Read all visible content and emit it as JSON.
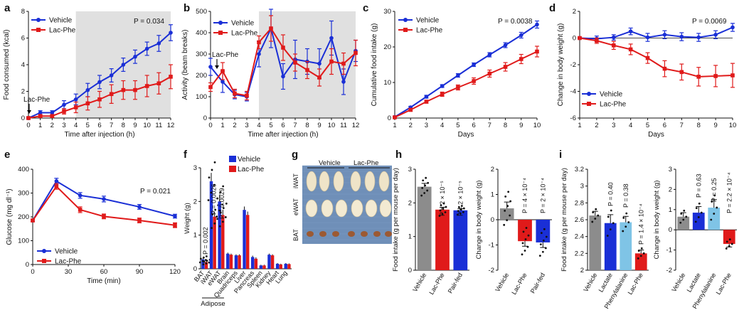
{
  "colors": {
    "vehicle": "#1a2fd6",
    "lacphe": "#e01a1a",
    "pairfed": "#1a2fd6",
    "lactate": "#1a2fd6",
    "phenylalanine": "#7fc4e6",
    "gray": "#8c8c8c",
    "shade": "#e0e0e0"
  },
  "panels": {
    "a": "a",
    "b": "b",
    "c": "c",
    "d": "d",
    "e": "e",
    "f": "f",
    "g": "g",
    "h": "h",
    "i": "i"
  },
  "chart_data": [
    {
      "id": "a",
      "type": "line",
      "xlabel": "Time after injection (h)",
      "ylabel": "Food consumed (kcal)",
      "x": [
        0,
        1,
        2,
        3,
        4,
        5,
        6,
        7,
        8,
        9,
        10,
        11,
        12
      ],
      "xticks": [
        0,
        1,
        2,
        3,
        4,
        5,
        6,
        7,
        8,
        9,
        10,
        11,
        12
      ],
      "ylim": [
        0,
        8
      ],
      "yticks": [
        0,
        2,
        4,
        6,
        8
      ],
      "shade": [
        4,
        12
      ],
      "pvalue": "P = 0.034",
      "annotation": "Lac-Phe",
      "legend": [
        "Vehicle",
        "Lac-Phe"
      ],
      "series": [
        {
          "name": "Vehicle",
          "values": [
            0,
            0.4,
            0.4,
            1.0,
            1.4,
            2.1,
            2.7,
            3.2,
            4.0,
            4.6,
            5.2,
            5.6,
            6.4
          ],
          "err": [
            0.1,
            0.15,
            0.15,
            0.3,
            0.4,
            0.5,
            0.5,
            0.5,
            0.5,
            0.5,
            0.5,
            0.6,
            0.6
          ]
        },
        {
          "name": "Lac-Phe",
          "values": [
            0,
            0.15,
            0.15,
            0.5,
            0.8,
            1.1,
            1.4,
            1.8,
            2.1,
            2.1,
            2.4,
            2.6,
            3.1
          ],
          "err": [
            0.05,
            0.1,
            0.1,
            0.2,
            0.4,
            0.5,
            0.6,
            0.7,
            0.7,
            0.7,
            0.8,
            0.8,
            0.9
          ]
        }
      ]
    },
    {
      "id": "b",
      "type": "line",
      "xlabel": "Time after injection (h)",
      "ylabel": "Activity (beam breaks)",
      "x": [
        0,
        1,
        2,
        3,
        4,
        5,
        6,
        7,
        8,
        9,
        10,
        11,
        12
      ],
      "xticks": [
        0,
        1,
        2,
        3,
        4,
        5,
        6,
        7,
        8,
        9,
        10,
        11,
        12
      ],
      "ylim": [
        0,
        500
      ],
      "yticks": [
        0,
        100,
        200,
        300,
        400,
        500
      ],
      "shade": [
        4,
        12
      ],
      "annotation": "Lac-Phe",
      "legend": [
        "Vehicle",
        "Lac-Phe"
      ],
      "series": [
        {
          "name": "Vehicle",
          "values": [
            240,
            170,
            110,
            100,
            300,
            420,
            195,
            275,
            265,
            255,
            375,
            170,
            315
          ],
          "err": [
            40,
            50,
            20,
            20,
            60,
            90,
            60,
            90,
            60,
            70,
            80,
            60,
            50
          ]
        },
        {
          "name": "Lac-Phe",
          "values": [
            145,
            220,
            115,
            105,
            355,
            420,
            330,
            260,
            225,
            190,
            265,
            255,
            305
          ],
          "err": [
            20,
            40,
            20,
            20,
            30,
            60,
            60,
            40,
            40,
            40,
            60,
            50,
            60
          ]
        }
      ]
    },
    {
      "id": "c",
      "type": "line",
      "xlabel": "Days",
      "ylabel": "Cumulative food intake (g)",
      "x": [
        1,
        2,
        3,
        4,
        5,
        6,
        7,
        8,
        9,
        10
      ],
      "xticks": [
        1,
        2,
        3,
        4,
        5,
        6,
        7,
        8,
        9,
        10
      ],
      "ylim": [
        0,
        30
      ],
      "yticks": [
        0,
        10,
        20,
        30
      ],
      "pvalue": "P = 0.0038",
      "legend": [
        "Vehicle",
        "Lac-Phe"
      ],
      "series": [
        {
          "name": "Vehicle",
          "values": [
            0.3,
            3.0,
            6.0,
            9.0,
            12.0,
            15.0,
            17.8,
            20.5,
            23.3,
            26.3
          ],
          "err": [
            0.1,
            0.3,
            0.4,
            0.4,
            0.5,
            0.5,
            0.6,
            0.7,
            0.8,
            1.0
          ]
        },
        {
          "name": "Lac-Phe",
          "values": [
            0.2,
            2.3,
            4.6,
            6.7,
            8.6,
            10.4,
            12.5,
            14.4,
            16.6,
            18.7
          ],
          "err": [
            0.1,
            0.3,
            0.4,
            0.6,
            0.7,
            0.9,
            1.0,
            1.2,
            1.3,
            1.5
          ]
        }
      ]
    },
    {
      "id": "d",
      "type": "line",
      "xlabel": "Days",
      "ylabel": "Change in body weight (g)",
      "x": [
        1,
        2,
        3,
        4,
        5,
        6,
        7,
        8,
        9,
        10
      ],
      "xticks": [
        1,
        2,
        3,
        4,
        5,
        6,
        7,
        8,
        9,
        10
      ],
      "ylim": [
        -6,
        2
      ],
      "yticks": [
        -6,
        -4,
        -2,
        0,
        2
      ],
      "pvalue": "P = 0.0069",
      "legend": [
        "Vehicle",
        "Lac-Phe"
      ],
      "series": [
        {
          "name": "Vehicle",
          "values": [
            0,
            -0.05,
            0.05,
            0.5,
            0.05,
            0.25,
            0.1,
            0.05,
            0.25,
            0.8
          ],
          "err": [
            0.05,
            0.2,
            0.2,
            0.25,
            0.3,
            0.3,
            0.3,
            0.3,
            0.3,
            0.3
          ]
        },
        {
          "name": "Lac-Phe",
          "values": [
            0,
            -0.2,
            -0.55,
            -0.85,
            -1.5,
            -2.3,
            -2.55,
            -2.9,
            -2.85,
            -2.8
          ],
          "err": [
            0.05,
            0.2,
            0.3,
            0.4,
            0.4,
            0.6,
            0.6,
            0.7,
            0.8,
            0.9
          ]
        }
      ]
    },
    {
      "id": "e",
      "type": "line",
      "xlabel": "Time (min)",
      "ylabel": "Glucose (mg dl⁻¹)",
      "x": [
        0,
        20,
        40,
        60,
        90,
        120
      ],
      "xticks": [
        0,
        30,
        60,
        90,
        120
      ],
      "ylim": [
        0,
        400
      ],
      "yticks": [
        0,
        100,
        200,
        300,
        400
      ],
      "pvalue": "P = 0.021",
      "legend": [
        "Vehicle",
        "Lac-Phe"
      ],
      "series": [
        {
          "name": "Vehicle",
          "values": [
            185,
            350,
            290,
            275,
            242,
            203
          ],
          "err": [
            5,
            12,
            12,
            12,
            10,
            8
          ]
        },
        {
          "name": "Lac-Phe",
          "values": [
            185,
            328,
            230,
            202,
            185,
            165
          ],
          "err": [
            5,
            12,
            12,
            10,
            10,
            10
          ]
        }
      ]
    },
    {
      "id": "f",
      "type": "bar",
      "ylabel": "Weight (g)",
      "categories": [
        "BAT",
        "iWAT",
        "eWAT",
        "Brain",
        "Quadriceps",
        "Liver",
        "Pancreas",
        "Spleen",
        "Kidney",
        "Heart",
        "Lung"
      ],
      "group_label": "Adipose",
      "ylim": [
        0,
        3
      ],
      "yticks": [
        0,
        1,
        2,
        3
      ],
      "pvalues": [
        "P = 0.002",
        "P = 0.0026",
        "P = 0.0029"
      ],
      "legend": [
        "Vehicle",
        "Lac-Phe"
      ],
      "series": [
        {
          "name": "Vehicle",
          "values": [
            0.28,
            2.6,
            2.0,
            0.45,
            0.4,
            1.75,
            0.35,
            0.1,
            0.42,
            0.15,
            0.15
          ],
          "err": [
            0.04,
            0.25,
            0.2,
            0.03,
            0.03,
            0.1,
            0.04,
            0.02,
            0.03,
            0.02,
            0.02
          ]
        },
        {
          "name": "Lac-Phe",
          "values": [
            0.2,
            1.55,
            1.6,
            0.42,
            0.4,
            1.6,
            0.3,
            0.1,
            0.4,
            0.13,
            0.14
          ],
          "err": [
            0.03,
            0.15,
            0.15,
            0.03,
            0.03,
            0.1,
            0.04,
            0.02,
            0.03,
            0.02,
            0.02
          ]
        }
      ]
    },
    {
      "id": "h1",
      "type": "bar",
      "ylabel": "Food intake (g per mouse per day)",
      "categories": [
        "Vehicle",
        "Lac-Phe",
        "Pair-fed"
      ],
      "ylim": [
        0,
        3
      ],
      "yticks": [
        0,
        1,
        2,
        3
      ],
      "pvalues": [
        "P = 2 × 10⁻⁵",
        "P = 2 × 10⁻⁵"
      ],
      "values": [
        2.48,
        1.8,
        1.78
      ],
      "err": [
        0.1,
        0.07,
        0.05
      ]
    },
    {
      "id": "h2",
      "type": "bar",
      "ylabel": "Change in body weight (g)",
      "categories": [
        "Vehicle",
        "Lac-Phe",
        "Pair-fed"
      ],
      "ylim": [
        -2,
        2
      ],
      "yticks": [
        -2,
        -1,
        0,
        1,
        2
      ],
      "pvalues": [
        "P = 4 × 10⁻⁴",
        "P = 2 × 10⁻⁴"
      ],
      "values": [
        0.45,
        -0.85,
        -0.9
      ],
      "err": [
        0.25,
        0.2,
        0.2
      ]
    },
    {
      "id": "i1",
      "type": "bar",
      "ylabel": "Food intake (g per mouse per day)",
      "categories": [
        "Vehicle",
        "Lactate",
        "Phenylalanine",
        "Lac-Phe"
      ],
      "ylim": [
        2.0,
        3.2
      ],
      "yticks": [
        2.0,
        2.2,
        2.4,
        2.6,
        2.8,
        3.0,
        3.2
      ],
      "pvalues": [
        "P = 0.40",
        "P = 0.38",
        "P = 1.4 × 10⁻⁴"
      ],
      "values": [
        2.65,
        2.56,
        2.57,
        2.2
      ],
      "err": [
        0.05,
        0.1,
        0.07,
        0.04
      ]
    },
    {
      "id": "i2",
      "type": "bar",
      "ylabel": "Change in body weight (g)",
      "categories": [
        "Vehicle",
        "Lactate",
        "Phenylalanine",
        "Lac-Phe"
      ],
      "ylim": [
        -2,
        3
      ],
      "yticks": [
        -2,
        -1,
        0,
        1,
        2,
        3
      ],
      "pvalues": [
        "P = 0.63",
        "P = 0.25",
        "P = 2.2 × 10⁻⁴"
      ],
      "values": [
        0.65,
        0.85,
        1.1,
        -0.7
      ],
      "err": [
        0.2,
        0.3,
        0.4,
        0.15
      ]
    }
  ],
  "photo": {
    "col_vehicle": "Vehicle",
    "col_lacphe": "Lac-Phe",
    "rows": [
      "iWAT",
      "eWAT",
      "BAT"
    ]
  }
}
